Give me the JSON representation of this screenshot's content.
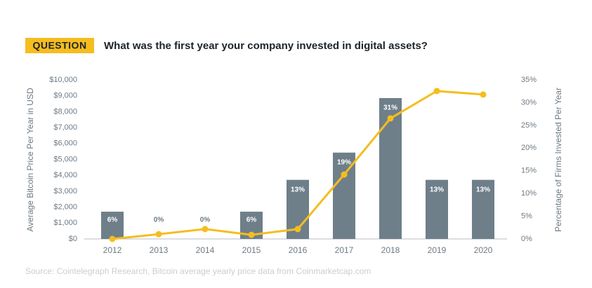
{
  "badge": "QUESTION",
  "chart_data": {
    "type": "bar",
    "title": "What was the first year your company invested in digital assets?",
    "y_label": "Average Bitcoin Price Per Year in USD",
    "y2_label": "Percentage of Firms Invested Per Year",
    "categories": [
      "2012",
      "2013",
      "2014",
      "2015",
      "2016",
      "2017",
      "2018",
      "2019",
      "2020"
    ],
    "series": [
      {
        "type": "bar",
        "axis": "y2",
        "color": "#6e7f89",
        "values": [
          6,
          0,
          0,
          6,
          13,
          19,
          31,
          13,
          13
        ],
        "value_labels": [
          "6%",
          "0%",
          "0%",
          "6%",
          "13%",
          "19%",
          "31%",
          "13%",
          "13%"
        ]
      },
      {
        "type": "line",
        "color": "#f5bd1f",
        "values": [
          0,
          300,
          620,
          260,
          620,
          4050,
          7580,
          9300,
          9080
        ]
      }
    ],
    "ylim": [
      0,
      10000
    ],
    "yticks": [
      {
        "value": 0,
        "label": "$0"
      },
      {
        "value": 1000,
        "label": "$1,000"
      },
      {
        "value": 2000,
        "label": "$2,000"
      },
      {
        "value": 3000,
        "label": "$3,000"
      },
      {
        "value": 4000,
        "label": "$4,000"
      },
      {
        "value": 5000,
        "label": "$5,000"
      },
      {
        "value": 6000,
        "label": "$6,000"
      },
      {
        "value": 7000,
        "label": "$7,000"
      },
      {
        "value": 8000,
        "label": "$8,000"
      },
      {
        "value": 9000,
        "label": "$9,000"
      },
      {
        "value": 10000,
        "label": "$10,000"
      }
    ],
    "y2lim": [
      0,
      35
    ],
    "y2ticks": [
      {
        "value": 0,
        "label": "0%"
      },
      {
        "value": 5,
        "label": "5%"
      },
      {
        "value": 10,
        "label": "10%"
      },
      {
        "value": 15,
        "label": "15%"
      },
      {
        "value": 20,
        "label": "20%"
      },
      {
        "value": 25,
        "label": "25%"
      },
      {
        "value": 30,
        "label": "30%"
      },
      {
        "value": 35,
        "label": "35%"
      }
    ],
    "source": "Source: Cointelegraph Research, Bitcoin average yearly price data from Coinmarketcap.com"
  }
}
